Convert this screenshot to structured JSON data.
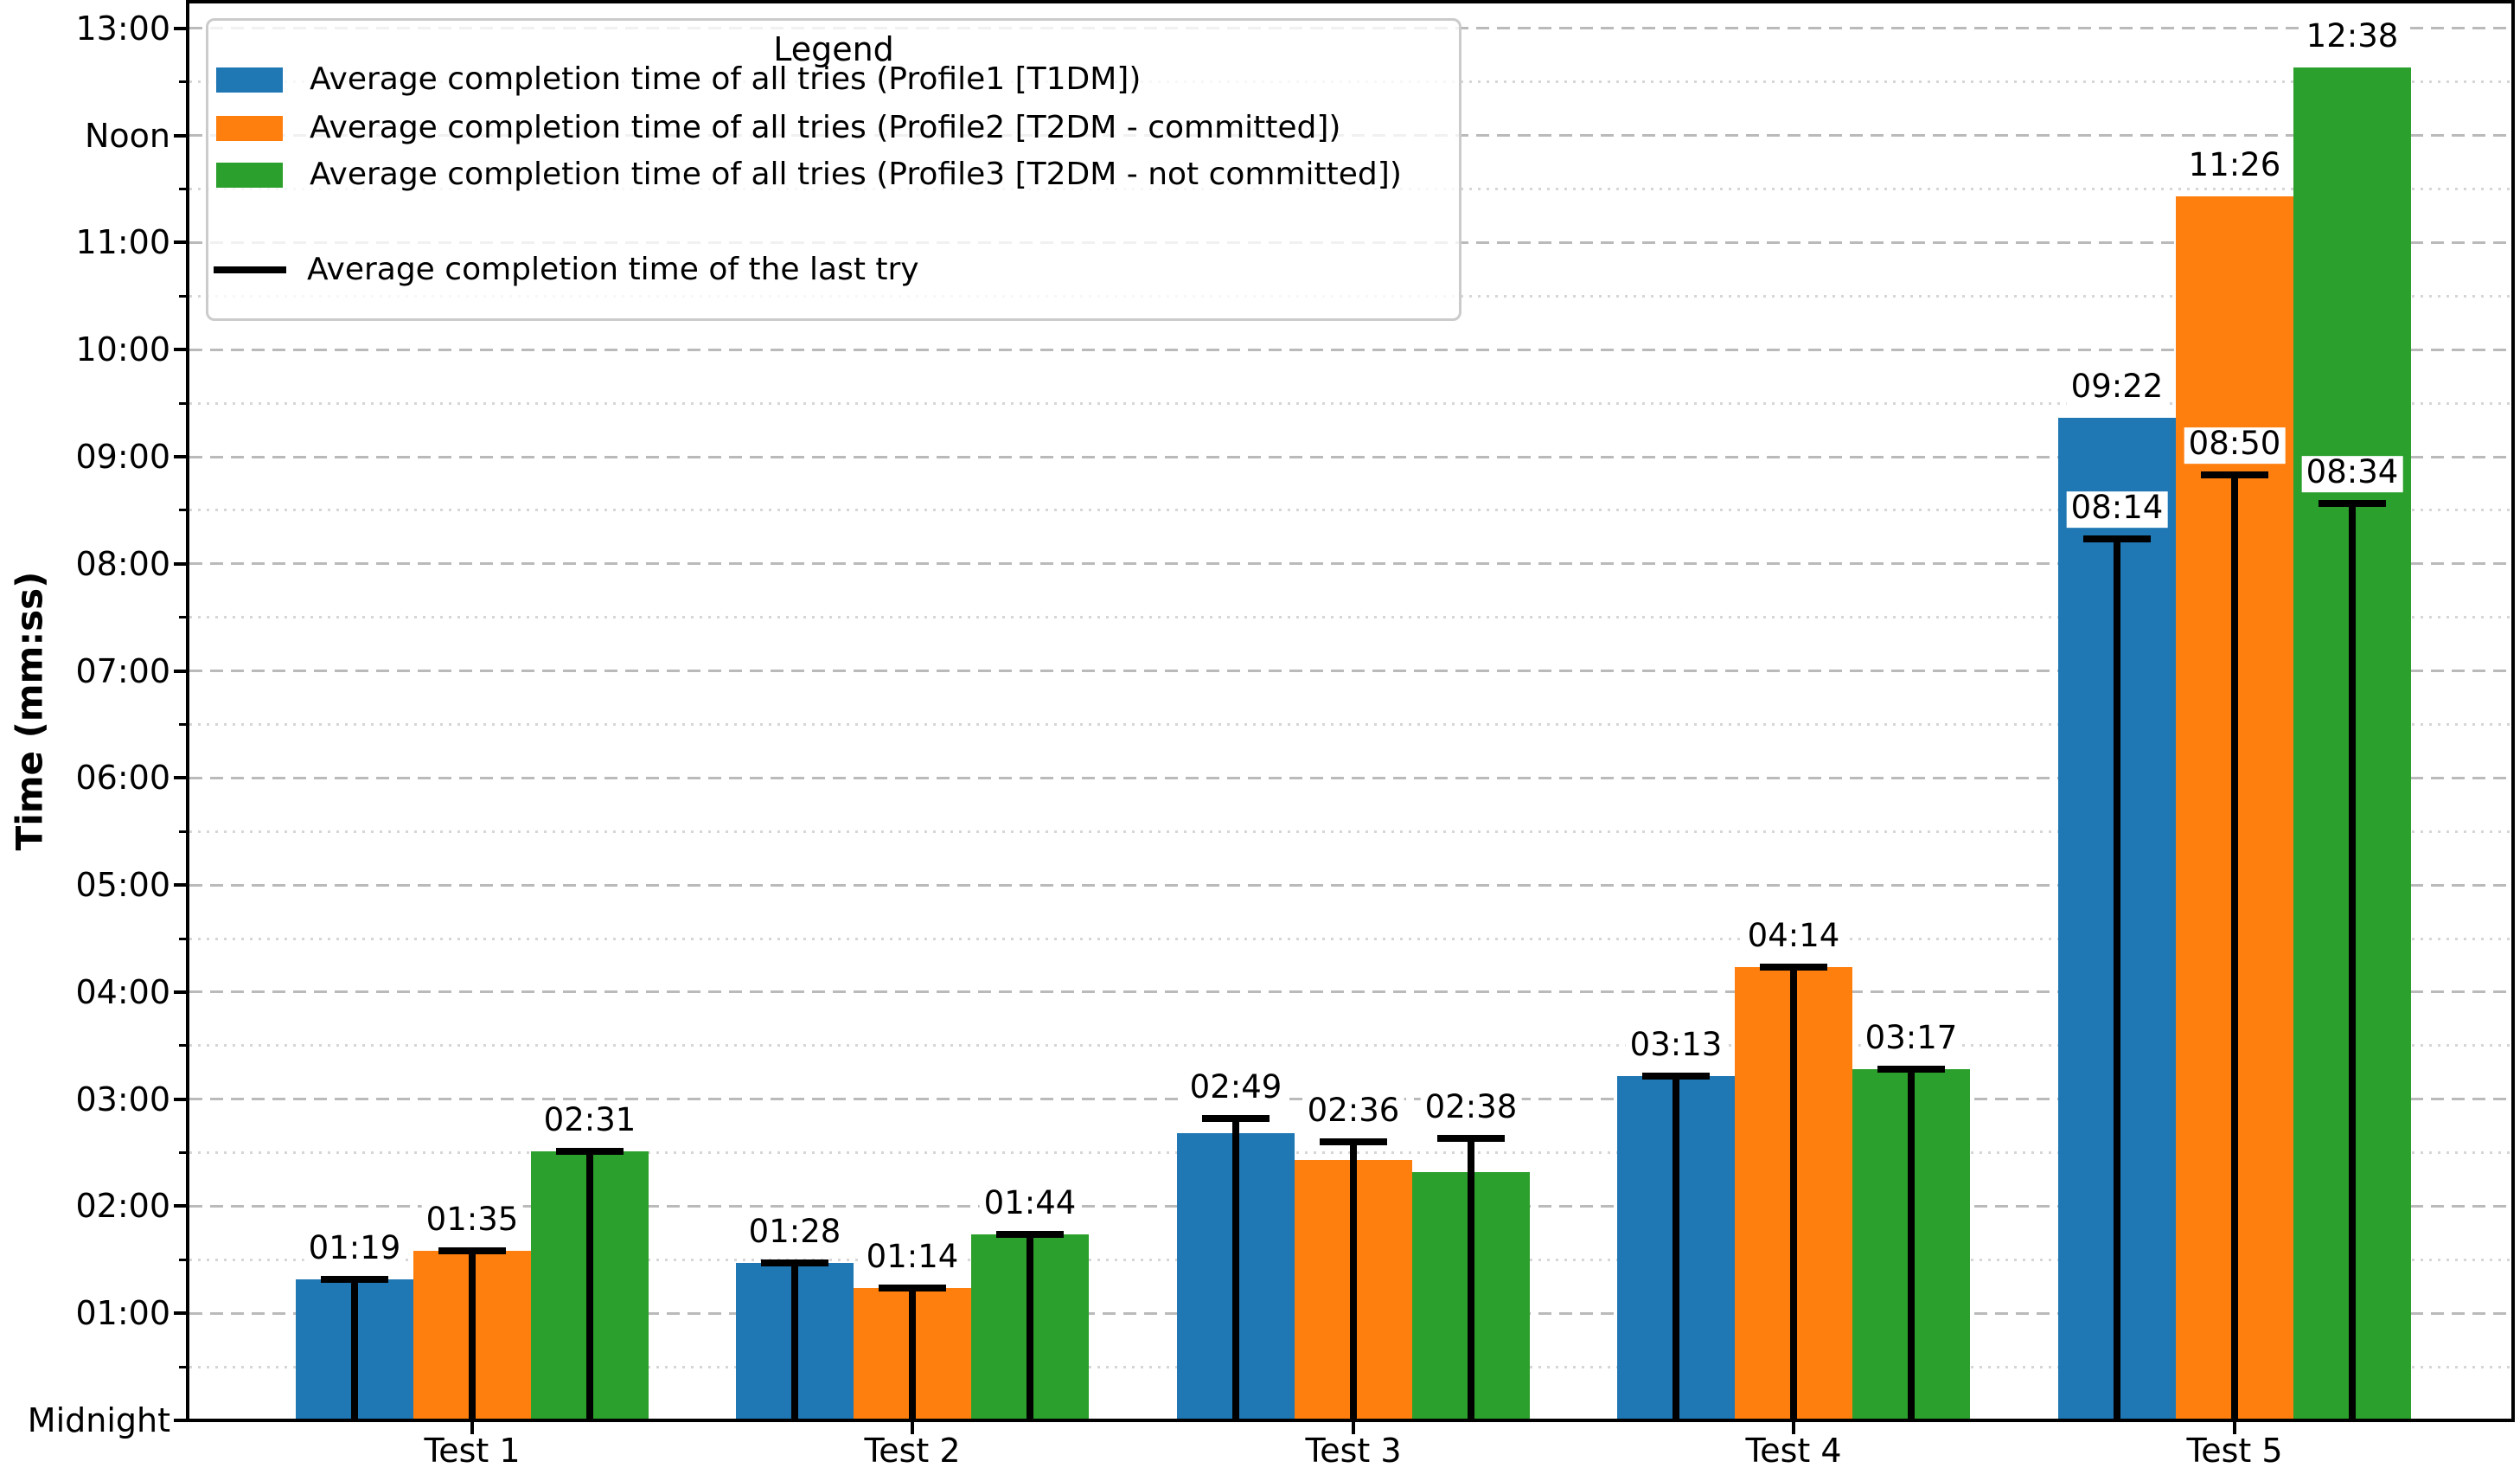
{
  "figure": {
    "background": "#ffffff",
    "axis_color": "#000000",
    "grid_major_color": "#bababa",
    "grid_minor_color": "#d6d6d6",
    "ylabel": "Time (mm:ss)"
  },
  "legend": {
    "title": "Legend",
    "items": [
      {
        "swatch": "patch",
        "color": "#1f77b4",
        "label": "Average completion time of all tries (Profile1 [T1DM])"
      },
      {
        "swatch": "patch",
        "color": "#ff7f0e",
        "label": "Average completion time of all tries (Profile2 [T2DM - committed])"
      },
      {
        "swatch": "patch",
        "color": "#2ca02c",
        "label": "Average completion time of all tries (Profile3 [T2DM - not committed])"
      },
      {
        "swatch": "line",
        "color": "#000000",
        "label": "Average completion time of the last try"
      }
    ]
  },
  "yaxis": {
    "major_ticks": [
      {
        "label": "Midnight",
        "seconds": 0
      },
      {
        "label": "01:00",
        "seconds": 60
      },
      {
        "label": "02:00",
        "seconds": 120
      },
      {
        "label": "03:00",
        "seconds": 180
      },
      {
        "label": "04:00",
        "seconds": 240
      },
      {
        "label": "05:00",
        "seconds": 300
      },
      {
        "label": "06:00",
        "seconds": 360
      },
      {
        "label": "07:00",
        "seconds": 420
      },
      {
        "label": "08:00",
        "seconds": 480
      },
      {
        "label": "09:00",
        "seconds": 540
      },
      {
        "label": "10:00",
        "seconds": 600
      },
      {
        "label": "11:00",
        "seconds": 660
      },
      {
        "label": "Noon",
        "seconds": 720
      },
      {
        "label": "13:00",
        "seconds": 780
      }
    ],
    "minor_tick_seconds": [
      30,
      90,
      150,
      210,
      270,
      330,
      390,
      450,
      510,
      570,
      630,
      690,
      750
    ]
  },
  "chart_data": {
    "type": "bar",
    "title": "",
    "xlabel": "",
    "ylabel": "Time (mm:ss)",
    "categories": [
      "Test 1",
      "Test 2",
      "Test 3",
      "Test 4",
      "Test 5"
    ],
    "ylim_seconds": [
      0,
      794
    ],
    "grid": "horizontal; major dashed + minor dotted at half-units",
    "legend_position": "upper left",
    "series": [
      {
        "name": "Average completion time of all tries (Profile1 [T1DM])",
        "color": "#1f77b4",
        "values_mmss": [
          "01:19",
          "01:28",
          "02:41",
          "03:13",
          "09:22"
        ],
        "values_seconds": [
          79,
          88,
          161,
          193,
          562
        ]
      },
      {
        "name": "Average completion time of all tries (Profile2 [T2DM - committed])",
        "color": "#ff7f0e",
        "values_mmss": [
          "01:35",
          "01:14",
          "02:26",
          "04:14",
          "11:26"
        ],
        "values_seconds": [
          95,
          74,
          146,
          254,
          686
        ]
      },
      {
        "name": "Average completion time of all tries (Profile3 [T2DM - not committed])",
        "color": "#2ca02c",
        "values_mmss": [
          "02:31",
          "01:44",
          "02:19",
          "03:17",
          "12:38"
        ],
        "values_seconds": [
          151,
          104,
          139,
          197,
          758
        ]
      }
    ],
    "last_try_series": [
      {
        "name": "Average completion time of the last try (Profile1)",
        "color": "#000000",
        "values_mmss": [
          "01:19",
          "01:28",
          "02:49",
          "03:13",
          "08:14"
        ],
        "values_seconds": [
          79,
          88,
          169,
          193,
          494
        ]
      },
      {
        "name": "Average completion time of the last try (Profile2)",
        "color": "#000000",
        "values_mmss": [
          "01:35",
          "01:14",
          "02:36",
          "04:14",
          "08:50"
        ],
        "values_seconds": [
          95,
          74,
          156,
          254,
          530
        ]
      },
      {
        "name": "Average completion time of the last try (Profile3)",
        "color": "#000000",
        "values_mmss": [
          "02:31",
          "01:44",
          "02:38",
          "03:17",
          "08:34"
        ],
        "values_seconds": [
          151,
          104,
          158,
          197,
          514
        ]
      }
    ],
    "annotations": {
      "cap_labels": [
        [
          "01:19",
          "01:35",
          "02:31"
        ],
        [
          "01:28",
          "01:14",
          "01:44"
        ],
        [
          "02:49",
          "02:36",
          "02:38"
        ],
        [
          "03:13",
          "04:14",
          "03:17"
        ],
        [
          "08:14",
          "08:50",
          "08:34"
        ]
      ],
      "bar_labels": [
        [
          null,
          null,
          null
        ],
        [
          null,
          null,
          null
        ],
        [
          null,
          null,
          null
        ],
        [
          null,
          null,
          null
        ],
        [
          "09:22",
          "11:26",
          "12:38"
        ]
      ]
    }
  }
}
